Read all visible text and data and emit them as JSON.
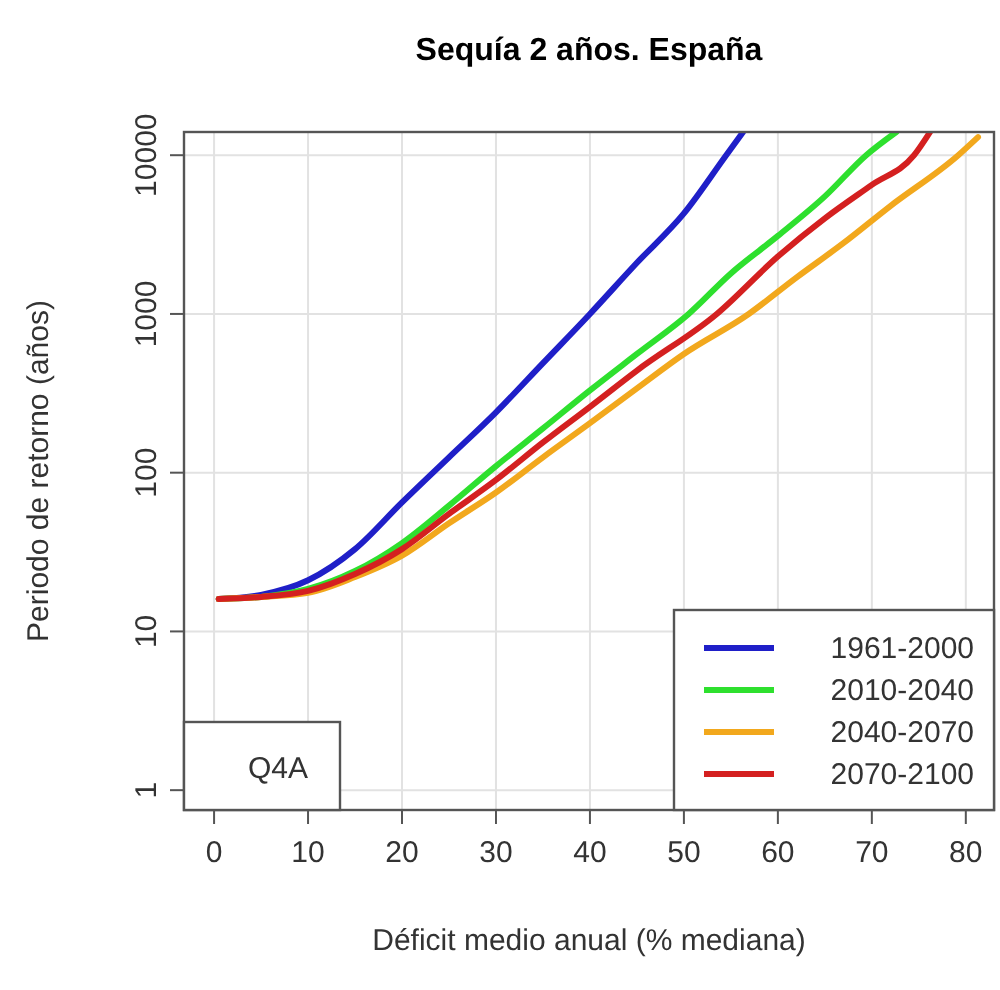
{
  "chart_data": {
    "type": "line",
    "title": "Sequía 2 años. España",
    "xlabel": "Déficit medio anual (% mediana)",
    "ylabel": "Periodo de retorno (años)",
    "log": "y",
    "grid": true,
    "legend": "bottom right",
    "line_style": "solid",
    "marker": "none",
    "xlim": [
      -3.2,
      83
    ],
    "xticks": [
      0,
      10,
      20,
      30,
      40,
      50,
      60,
      70,
      80
    ],
    "ylim": [
      0.75,
      14000
    ],
    "yticks": [
      1,
      10,
      100,
      1000,
      10000
    ],
    "annotations": [
      "Q4A"
    ],
    "series": [
      {
        "name": "1961-2000",
        "color": "#1f1fc8",
        "x": [
          0.5,
          5,
          10,
          15,
          20,
          25,
          30,
          35,
          40,
          45,
          50,
          54.5,
          56.3
        ],
        "values": [
          16,
          17,
          21,
          33,
          65,
          125,
          240,
          490,
          1000,
          2100,
          4300,
          10000,
          14000
        ]
      },
      {
        "name": "2010-2040",
        "color": "#2ee02e",
        "x": [
          0.5,
          5,
          10,
          15,
          20,
          25,
          30,
          35,
          40,
          45,
          50.5,
          55,
          60,
          65,
          69.4,
          72.6
        ],
        "values": [
          16,
          16.5,
          18.5,
          24,
          36,
          62,
          110,
          190,
          330,
          560,
          1000,
          1800,
          3100,
          5500,
          10000,
          14000
        ]
      },
      {
        "name": "2040-2070",
        "color": "#f2a81d",
        "x": [
          0.5,
          5,
          10,
          15,
          20,
          25,
          30,
          35,
          40,
          45,
          50,
          56.9,
          62,
          67,
          72,
          79.2,
          81.3
        ],
        "values": [
          16,
          16.5,
          17.5,
          22,
          30,
          48,
          75,
          125,
          205,
          340,
          560,
          1000,
          1700,
          2800,
          4800,
          10000,
          13000
        ]
      },
      {
        "name": "2070-2100",
        "color": "#d42020",
        "x": [
          0.5,
          5,
          10,
          15,
          20,
          25,
          30,
          35,
          40,
          45,
          53.5,
          60,
          65,
          70,
          74.5,
          76.2
        ],
        "values": [
          16,
          16.5,
          18,
          23,
          33,
          55,
          90,
          155,
          260,
          440,
          1000,
          2300,
          4000,
          6500,
          10000,
          14000
        ]
      }
    ]
  }
}
